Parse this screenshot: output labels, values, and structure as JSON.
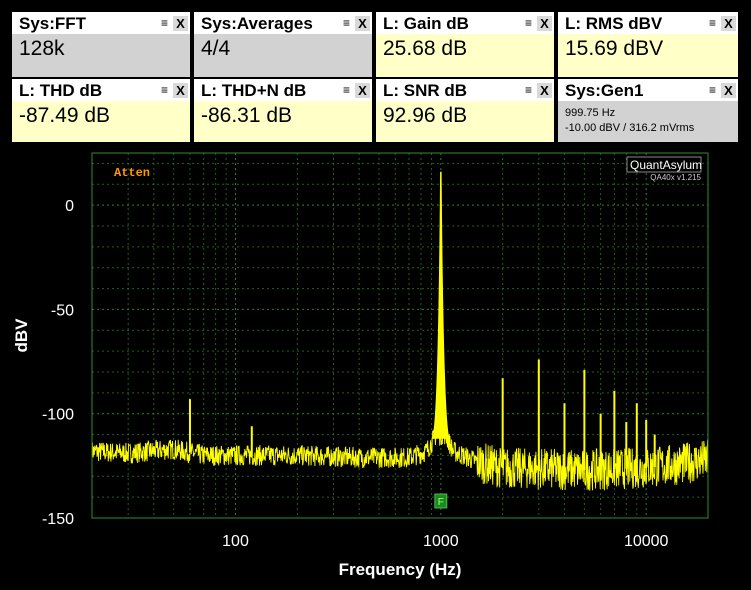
{
  "tiles": [
    {
      "title": "Sys:FFT",
      "value": "128k",
      "kind": "sys"
    },
    {
      "title": "Sys:Averages",
      "value": "4/4",
      "kind": "sys"
    },
    {
      "title": "L: Gain dB",
      "value": "25.68 dB",
      "kind": "l"
    },
    {
      "title": "L: RMS dBV",
      "value": "15.69 dBV",
      "kind": "l"
    },
    {
      "title": "L: THD dB",
      "value": "-87.49 dB",
      "kind": "l"
    },
    {
      "title": "L: THD+N dB",
      "value": "-86.31 dB",
      "kind": "l"
    },
    {
      "title": "L: SNR dB",
      "value": "92.96 dB",
      "kind": "l"
    }
  ],
  "gen": {
    "title": "Sys:Gen1",
    "line1": "999.75 Hz",
    "line2": "-10.00 dBV  / 316.2 mVrms"
  },
  "tile_controls": {
    "minimize": "≡",
    "close": "X"
  },
  "colors": {
    "trace": "#ffff00",
    "grid": "#2e8b2e",
    "atten": "#ff9900",
    "marker": "#1a8a1a"
  },
  "chart_data": {
    "type": "line",
    "xlabel": "Frequency (Hz)",
    "ylabel": "dBV",
    "xscale": "log",
    "xlim": [
      20,
      20000
    ],
    "ylim": [
      -150,
      25
    ],
    "xticks": [
      100,
      1000,
      10000
    ],
    "xtick_labels": [
      "100",
      "1000",
      "10000"
    ],
    "yticks": [
      0,
      -50,
      -100,
      -150
    ],
    "ytick_labels": [
      "0",
      "-50",
      "-100",
      "-150"
    ],
    "grid": true,
    "annotation": "Atten",
    "brand": "QuantAsylum",
    "brand_sub": "QA40x v1.215",
    "marker_label": "F",
    "marker_freq": 1000,
    "noise_floor": [
      [
        20,
        -118
      ],
      [
        30,
        -119
      ],
      [
        50,
        -117
      ],
      [
        70,
        -120
      ],
      [
        100,
        -120
      ],
      [
        200,
        -120
      ],
      [
        400,
        -121
      ],
      [
        700,
        -121
      ],
      [
        850,
        -118
      ],
      [
        950,
        -110
      ],
      [
        1050,
        -110
      ],
      [
        1150,
        -118
      ],
      [
        1500,
        -123
      ],
      [
        2000,
        -126
      ],
      [
        5000,
        -127
      ],
      [
        10000,
        -126
      ],
      [
        15000,
        -124
      ],
      [
        20000,
        -122
      ]
    ],
    "series": [
      {
        "values": [
          [
            60,
            -93
          ],
          [
            120,
            -106
          ],
          [
            1000,
            16
          ],
          [
            2000,
            -83
          ],
          [
            3000,
            -74
          ],
          [
            4000,
            -95
          ],
          [
            5000,
            -79
          ],
          [
            6000,
            -100
          ],
          [
            7000,
            -89
          ],
          [
            8000,
            -104
          ],
          [
            9000,
            -95
          ],
          [
            10000,
            -103
          ],
          [
            11000,
            -110
          ]
        ]
      }
    ]
  }
}
